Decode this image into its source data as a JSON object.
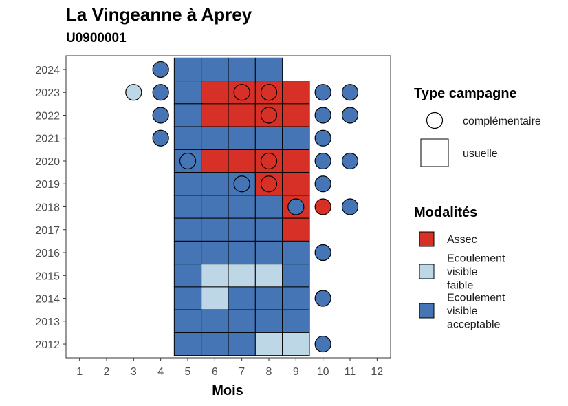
{
  "chart_data": {
    "type": "heatmap",
    "title": "La Vingeanne à Aprey",
    "subtitle": "U0900001",
    "xlabel": "Mois",
    "ylabel": "",
    "x_ticks": [
      1,
      2,
      3,
      4,
      5,
      6,
      7,
      8,
      9,
      10,
      11,
      12
    ],
    "y_ticks": [
      2012,
      2013,
      2014,
      2015,
      2016,
      2017,
      2018,
      2019,
      2020,
      2021,
      2022,
      2023,
      2024
    ],
    "xlim": [
      0.5,
      12.5
    ],
    "ylim": [
      2011.4,
      2024.6
    ],
    "grid": false,
    "legend_position": "right",
    "modalites": [
      {
        "key": "assec",
        "label_lines": [
          "Assec"
        ],
        "color": "#d73027"
      },
      {
        "key": "faible",
        "label_lines": [
          "Ecoulement",
          "visible",
          "faible"
        ],
        "color": "#bdd7e7"
      },
      {
        "key": "acceptable",
        "label_lines": [
          "Ecoulement",
          "visible",
          "acceptable"
        ],
        "color": "#4575b4"
      }
    ],
    "type_campagne": [
      {
        "key": "complementaire",
        "label": "complémentaire",
        "shape": "circle"
      },
      {
        "key": "usuelle",
        "label": "usuelle",
        "shape": "square"
      }
    ],
    "legend_titles": {
      "type": "Type campagne",
      "modalites": "Modalités"
    },
    "usuelle": [
      {
        "year": 2024,
        "months": [
          5,
          6,
          7,
          8
        ],
        "values": [
          "acceptable",
          "acceptable",
          "acceptable",
          "acceptable"
        ]
      },
      {
        "year": 2023,
        "months": [
          5,
          6,
          7,
          8,
          9
        ],
        "values": [
          "acceptable",
          "assec",
          "assec",
          "assec",
          "assec"
        ]
      },
      {
        "year": 2022,
        "months": [
          5,
          6,
          7,
          8,
          9
        ],
        "values": [
          "acceptable",
          "assec",
          "assec",
          "assec",
          "assec"
        ]
      },
      {
        "year": 2021,
        "months": [
          5,
          6,
          7,
          8,
          9
        ],
        "values": [
          "acceptable",
          "acceptable",
          "acceptable",
          "acceptable",
          "acceptable"
        ]
      },
      {
        "year": 2020,
        "months": [
          5,
          6,
          7,
          8,
          9
        ],
        "values": [
          "acceptable",
          "assec",
          "assec",
          "assec",
          "assec"
        ]
      },
      {
        "year": 2019,
        "months": [
          5,
          6,
          7,
          8,
          9
        ],
        "values": [
          "acceptable",
          "acceptable",
          "acceptable",
          "assec",
          "assec"
        ]
      },
      {
        "year": 2018,
        "months": [
          5,
          6,
          7,
          8,
          9
        ],
        "values": [
          "acceptable",
          "acceptable",
          "acceptable",
          "acceptable",
          "assec"
        ]
      },
      {
        "year": 2017,
        "months": [
          5,
          6,
          7,
          8,
          9
        ],
        "values": [
          "acceptable",
          "acceptable",
          "acceptable",
          "acceptable",
          "assec"
        ]
      },
      {
        "year": 2016,
        "months": [
          5,
          6,
          7,
          8,
          9
        ],
        "values": [
          "acceptable",
          "acceptable",
          "acceptable",
          "acceptable",
          "acceptable"
        ]
      },
      {
        "year": 2015,
        "months": [
          5,
          6,
          7,
          8,
          9
        ],
        "values": [
          "acceptable",
          "faible",
          "faible",
          "faible",
          "acceptable"
        ]
      },
      {
        "year": 2014,
        "months": [
          5,
          6,
          7,
          8,
          9
        ],
        "values": [
          "acceptable",
          "faible",
          "acceptable",
          "acceptable",
          "acceptable"
        ]
      },
      {
        "year": 2013,
        "months": [
          5,
          6,
          7,
          8,
          9
        ],
        "values": [
          "acceptable",
          "acceptable",
          "acceptable",
          "acceptable",
          "acceptable"
        ]
      },
      {
        "year": 2012,
        "months": [
          5,
          6,
          7,
          8,
          9
        ],
        "values": [
          "acceptable",
          "acceptable",
          "acceptable",
          "faible",
          "faible"
        ]
      }
    ],
    "complementaire": [
      {
        "year": 2024,
        "month": 4,
        "value": "acceptable"
      },
      {
        "year": 2023,
        "month": 3,
        "value": "faible"
      },
      {
        "year": 2023,
        "month": 4,
        "value": "acceptable"
      },
      {
        "year": 2023,
        "month": 7,
        "value": "assec"
      },
      {
        "year": 2023,
        "month": 8,
        "value": "assec"
      },
      {
        "year": 2023,
        "month": 10,
        "value": "acceptable"
      },
      {
        "year": 2023,
        "month": 11,
        "value": "acceptable"
      },
      {
        "year": 2022,
        "month": 4,
        "value": "acceptable"
      },
      {
        "year": 2022,
        "month": 8,
        "value": "assec"
      },
      {
        "year": 2022,
        "month": 10,
        "value": "acceptable"
      },
      {
        "year": 2022,
        "month": 11,
        "value": "acceptable"
      },
      {
        "year": 2021,
        "month": 4,
        "value": "acceptable"
      },
      {
        "year": 2021,
        "month": 10,
        "value": "acceptable"
      },
      {
        "year": 2020,
        "month": 5,
        "value": "acceptable"
      },
      {
        "year": 2020,
        "month": 8,
        "value": "assec"
      },
      {
        "year": 2020,
        "month": 10,
        "value": "acceptable"
      },
      {
        "year": 2020,
        "month": 11,
        "value": "acceptable"
      },
      {
        "year": 2019,
        "month": 7,
        "value": "acceptable"
      },
      {
        "year": 2019,
        "month": 8,
        "value": "assec"
      },
      {
        "year": 2019,
        "month": 10,
        "value": "acceptable"
      },
      {
        "year": 2018,
        "month": 9,
        "value": "acceptable"
      },
      {
        "year": 2018,
        "month": 10,
        "value": "assec"
      },
      {
        "year": 2018,
        "month": 11,
        "value": "acceptable"
      },
      {
        "year": 2016,
        "month": 10,
        "value": "acceptable"
      },
      {
        "year": 2014,
        "month": 10,
        "value": "acceptable"
      },
      {
        "year": 2012,
        "month": 10,
        "value": "acceptable"
      }
    ]
  }
}
